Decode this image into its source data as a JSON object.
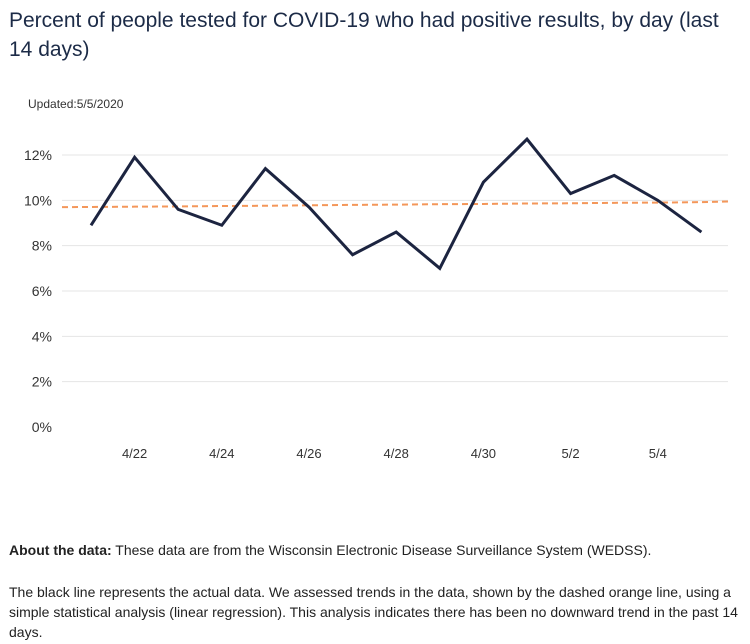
{
  "title": "Percent of people tested for COVID-19 who had positive results, by day (last 14 days)",
  "updated": "Updated:5/5/2020",
  "about": {
    "label": "About the data:",
    "text": " These data are from the Wisconsin Electronic Disease Surveillance System (WEDSS)."
  },
  "explanation": "The black line represents the actual data. We assessed trends in the data, shown by the dashed orange line, using a simple statistical analysis (linear regression). This analysis indicates there has been no downward trend in the past 14 days.",
  "colors": {
    "actual_line": "#1c2440",
    "trend_line": "#f4975a",
    "grid": "#e4e4e4"
  },
  "chart_data": {
    "type": "line",
    "title": "Percent of people tested for COVID-19 who had positive results, by day (last 14 days)",
    "xlabel": "",
    "ylabel": "",
    "x": [
      "4/21",
      "4/22",
      "4/23",
      "4/24",
      "4/25",
      "4/26",
      "4/27",
      "4/28",
      "4/29",
      "4/30",
      "5/1",
      "5/2",
      "5/3",
      "5/4",
      "5/5"
    ],
    "x_tick_labels": [
      "4/22",
      "4/24",
      "4/26",
      "4/28",
      "4/30",
      "5/2",
      "5/4"
    ],
    "ylim": [
      0,
      12
    ],
    "y_ticks": [
      0,
      2,
      4,
      6,
      8,
      10,
      12
    ],
    "y_tick_labels": [
      "0%",
      "2%",
      "4%",
      "6%",
      "8%",
      "10%",
      "12%"
    ],
    "grid": true,
    "series": [
      {
        "values": [
          8.9,
          11.9,
          9.6,
          8.9,
          11.4,
          9.7,
          7.6,
          8.6,
          7.0,
          10.8,
          12.7,
          10.3,
          11.1,
          10.0,
          8.6
        ]
      },
      {
        "style": "dashed",
        "values": [
          9.7,
          9.72,
          9.73,
          9.75,
          9.76,
          9.78,
          9.8,
          9.81,
          9.83,
          9.84,
          9.86,
          9.87,
          9.89,
          9.9,
          9.92
        ],
        "extends_to_x": "5/6",
        "extends_to_value": 9.95
      }
    ]
  }
}
